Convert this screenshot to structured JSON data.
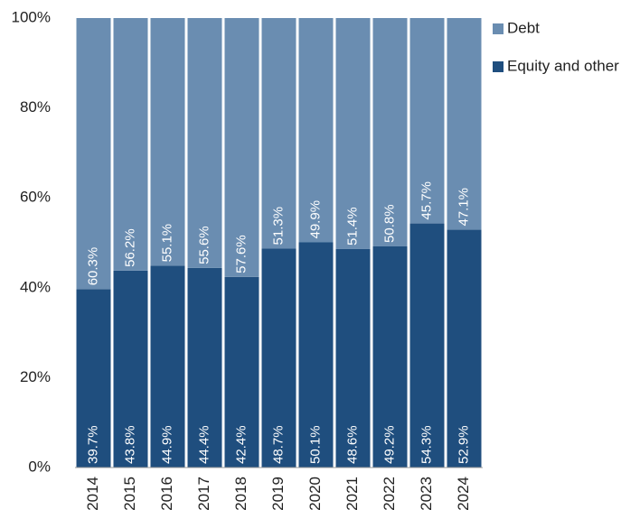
{
  "chart_data": {
    "type": "stacked_bar",
    "categories": [
      "2014",
      "2015",
      "2016",
      "2017",
      "2018",
      "2019",
      "2020",
      "2021",
      "2022",
      "2023",
      "2024"
    ],
    "series": [
      {
        "name": "Equity and other",
        "color": "#1f4e7e",
        "values": [
          39.7,
          43.8,
          44.9,
          44.4,
          42.4,
          48.7,
          50.1,
          48.6,
          49.2,
          54.3,
          52.9
        ],
        "value_labels": [
          "39.7%",
          "43.8%",
          "44.9%",
          "44.4%",
          "42.4%",
          "48.7%",
          "50.1%",
          "48.6%",
          "49.2%",
          "54.3%",
          "52.9%"
        ]
      },
      {
        "name": "Debt",
        "color": "#6a8db1",
        "values": [
          60.3,
          56.2,
          55.1,
          55.6,
          57.6,
          51.3,
          49.9,
          51.4,
          50.8,
          45.7,
          47.1
        ],
        "value_labels": [
          "60.3%",
          "56.2%",
          "55.1%",
          "55.6%",
          "57.6%",
          "51.3%",
          "49.9%",
          "51.4%",
          "50.8%",
          "45.7%",
          "47.1%"
        ]
      }
    ],
    "ylim": [
      0,
      100
    ],
    "yticks": [
      {
        "value": 0,
        "label": "0%"
      },
      {
        "value": 20,
        "label": "20%"
      },
      {
        "value": 40,
        "label": "40%"
      },
      {
        "value": 60,
        "label": "60%"
      },
      {
        "value": 80,
        "label": "80%"
      },
      {
        "value": 100,
        "label": "100%"
      }
    ],
    "legend": "right"
  }
}
